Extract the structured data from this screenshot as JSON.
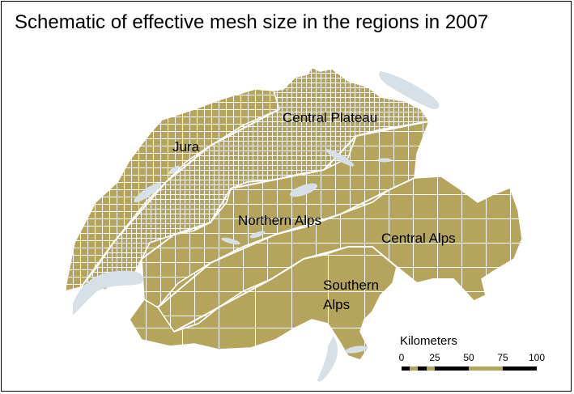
{
  "title": "Schematic of effective mesh size in the regions in 2007",
  "regions": {
    "jura": "Jura",
    "central_plateau": "Central Plateau",
    "northern_alps": "Northern Alps",
    "central_alps": "Central Alps",
    "southern_alps_line1": "Southern",
    "southern_alps_line2": "Alps"
  },
  "scale": {
    "title": "Kilometers",
    "ticks": [
      "0",
      "25",
      "50",
      "75",
      "100"
    ]
  },
  "colors": {
    "land": "#b5a55c",
    "grid_lines": "#ffffff",
    "lakes": "#d6e0e6",
    "boundaries": "#ffffff"
  }
}
